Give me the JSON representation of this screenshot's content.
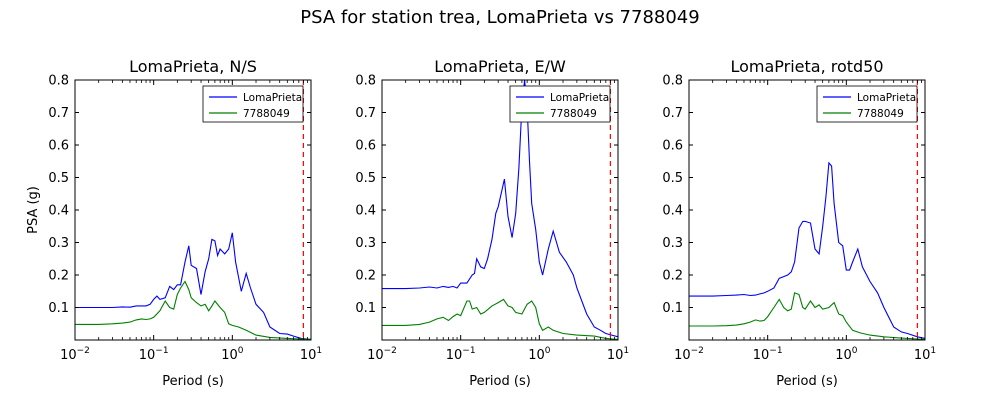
{
  "figure": {
    "suptitle": "PSA for station trea, LomaPrieta vs 7788049",
    "colors": {
      "series1": "#0000ff",
      "series2": "#008000",
      "refline": "#ff0000",
      "axes": "#000000",
      "background": "#ffffff"
    }
  },
  "chart_data": [
    {
      "type": "line",
      "title": "LomaPrieta, N/S",
      "xlabel": "Period (s)",
      "ylabel": "PSA (g)",
      "xscale": "log",
      "xlim": [
        0.01,
        10
      ],
      "ylim": [
        0.0,
        0.8
      ],
      "xticks": [
        "10^-2",
        "10^-1",
        "10^0",
        "10^1"
      ],
      "yticks": [
        "0.1",
        "0.2",
        "0.3",
        "0.4",
        "0.5",
        "0.6",
        "0.7",
        "0.8"
      ],
      "legend": "top-right",
      "grid": false,
      "vline": {
        "x": 8,
        "style": "dashed",
        "color": "#ff0000"
      },
      "series": [
        {
          "name": "LomaPrieta",
          "color": "#0000ff",
          "x": [
            0.01,
            0.02,
            0.03,
            0.04,
            0.05,
            0.06,
            0.07,
            0.08,
            0.09,
            0.1,
            0.11,
            0.12,
            0.14,
            0.16,
            0.18,
            0.2,
            0.22,
            0.25,
            0.28,
            0.3,
            0.35,
            0.4,
            0.45,
            0.5,
            0.55,
            0.6,
            0.65,
            0.7,
            0.8,
            0.9,
            1.0,
            1.1,
            1.3,
            1.5,
            1.7,
            2.0,
            2.5,
            3.0,
            4.0,
            5.0,
            6.0,
            7.5,
            10.0
          ],
          "y": [
            0.1,
            0.1,
            0.1,
            0.102,
            0.101,
            0.105,
            0.105,
            0.105,
            0.11,
            0.125,
            0.135,
            0.125,
            0.13,
            0.165,
            0.155,
            0.17,
            0.17,
            0.24,
            0.29,
            0.23,
            0.22,
            0.14,
            0.21,
            0.25,
            0.31,
            0.305,
            0.26,
            0.28,
            0.265,
            0.28,
            0.33,
            0.24,
            0.15,
            0.205,
            0.16,
            0.11,
            0.085,
            0.04,
            0.02,
            0.018,
            0.012,
            0.005,
            0.002
          ]
        },
        {
          "name": "7788049",
          "color": "#008000",
          "x": [
            0.01,
            0.02,
            0.03,
            0.04,
            0.05,
            0.06,
            0.07,
            0.08,
            0.09,
            0.1,
            0.12,
            0.14,
            0.16,
            0.18,
            0.2,
            0.22,
            0.25,
            0.28,
            0.3,
            0.35,
            0.4,
            0.45,
            0.5,
            0.55,
            0.6,
            0.7,
            0.8,
            0.9,
            1.0,
            1.2,
            1.5,
            2.0,
            3.0,
            5.0,
            7.5,
            10.0
          ],
          "y": [
            0.048,
            0.048,
            0.05,
            0.052,
            0.055,
            0.062,
            0.065,
            0.063,
            0.065,
            0.07,
            0.09,
            0.12,
            0.1,
            0.095,
            0.14,
            0.16,
            0.18,
            0.155,
            0.13,
            0.115,
            0.105,
            0.11,
            0.09,
            0.105,
            0.12,
            0.1,
            0.085,
            0.05,
            0.045,
            0.04,
            0.03,
            0.015,
            0.008,
            0.005,
            0.003,
            0.002
          ]
        }
      ]
    },
    {
      "type": "line",
      "title": "LomaPrieta, E/W",
      "xlabel": "Period (s)",
      "ylabel": "",
      "xscale": "log",
      "xlim": [
        0.01,
        10
      ],
      "ylim": [
        0.0,
        0.8
      ],
      "xticks": [
        "10^-2",
        "10^-1",
        "10^0",
        "10^1"
      ],
      "yticks": [
        "0.1",
        "0.2",
        "0.3",
        "0.4",
        "0.5",
        "0.6",
        "0.7",
        "0.8"
      ],
      "legend": "top-right",
      "grid": false,
      "vline": {
        "x": 8,
        "style": "dashed",
        "color": "#ff0000"
      },
      "series": [
        {
          "name": "LomaPrieta",
          "color": "#0000ff",
          "x": [
            0.01,
            0.02,
            0.03,
            0.04,
            0.05,
            0.06,
            0.07,
            0.08,
            0.09,
            0.1,
            0.12,
            0.14,
            0.15,
            0.16,
            0.18,
            0.2,
            0.22,
            0.25,
            0.28,
            0.3,
            0.33,
            0.36,
            0.4,
            0.45,
            0.5,
            0.55,
            0.6,
            0.65,
            0.7,
            0.75,
            0.8,
            0.9,
            1.0,
            1.1,
            1.3,
            1.5,
            1.8,
            2.2,
            2.7,
            3.0,
            4.0,
            5.0,
            6.0,
            7.0,
            10.0
          ],
          "y": [
            0.158,
            0.158,
            0.16,
            0.163,
            0.16,
            0.165,
            0.162,
            0.165,
            0.16,
            0.175,
            0.175,
            0.2,
            0.205,
            0.25,
            0.225,
            0.22,
            0.25,
            0.31,
            0.39,
            0.41,
            0.455,
            0.495,
            0.38,
            0.315,
            0.39,
            0.53,
            0.72,
            0.8,
            0.72,
            0.55,
            0.42,
            0.34,
            0.24,
            0.2,
            0.28,
            0.335,
            0.27,
            0.24,
            0.2,
            0.16,
            0.08,
            0.04,
            0.03,
            0.02,
            0.01
          ]
        },
        {
          "name": "7788049",
          "color": "#008000",
          "x": [
            0.01,
            0.02,
            0.03,
            0.04,
            0.05,
            0.06,
            0.07,
            0.08,
            0.09,
            0.1,
            0.12,
            0.13,
            0.14,
            0.16,
            0.18,
            0.2,
            0.25,
            0.3,
            0.35,
            0.4,
            0.45,
            0.5,
            0.6,
            0.7,
            0.8,
            0.9,
            1.0,
            1.1,
            1.3,
            1.5,
            2.0,
            3.0,
            5.0,
            7.0,
            10.0
          ],
          "y": [
            0.045,
            0.045,
            0.048,
            0.055,
            0.065,
            0.07,
            0.06,
            0.072,
            0.08,
            0.075,
            0.12,
            0.12,
            0.095,
            0.1,
            0.08,
            0.085,
            0.105,
            0.115,
            0.125,
            0.105,
            0.1,
            0.085,
            0.08,
            0.11,
            0.12,
            0.1,
            0.05,
            0.03,
            0.04,
            0.03,
            0.02,
            0.015,
            0.012,
            0.005,
            0.002
          ]
        }
      ]
    },
    {
      "type": "line",
      "title": "LomaPrieta, rotd50",
      "xlabel": "Period (s)",
      "ylabel": "",
      "xscale": "log",
      "xlim": [
        0.01,
        10
      ],
      "ylim": [
        0.0,
        0.8
      ],
      "xticks": [
        "10^-2",
        "10^-1",
        "10^0",
        "10^1"
      ],
      "yticks": [
        "0.1",
        "0.2",
        "0.3",
        "0.4",
        "0.5",
        "0.6",
        "0.7",
        "0.8"
      ],
      "legend": "top-right",
      "grid": false,
      "vline": {
        "x": 8,
        "style": "dashed",
        "color": "#ff0000"
      },
      "series": [
        {
          "name": "LomaPrieta",
          "color": "#0000ff",
          "x": [
            0.01,
            0.02,
            0.03,
            0.04,
            0.05,
            0.06,
            0.07,
            0.08,
            0.09,
            0.1,
            0.12,
            0.14,
            0.16,
            0.18,
            0.2,
            0.22,
            0.25,
            0.28,
            0.3,
            0.35,
            0.4,
            0.45,
            0.5,
            0.55,
            0.6,
            0.65,
            0.7,
            0.8,
            0.9,
            1.0,
            1.1,
            1.2,
            1.4,
            1.6,
            2.0,
            2.5,
            3.0,
            4.0,
            5.0,
            6.0,
            8.0,
            10.0
          ],
          "y": [
            0.135,
            0.135,
            0.137,
            0.138,
            0.14,
            0.137,
            0.138,
            0.142,
            0.145,
            0.15,
            0.16,
            0.19,
            0.195,
            0.2,
            0.21,
            0.24,
            0.345,
            0.365,
            0.365,
            0.36,
            0.28,
            0.265,
            0.35,
            0.44,
            0.545,
            0.535,
            0.42,
            0.3,
            0.29,
            0.215,
            0.215,
            0.24,
            0.28,
            0.225,
            0.18,
            0.145,
            0.1,
            0.04,
            0.025,
            0.02,
            0.01,
            0.005
          ]
        },
        {
          "name": "7788049",
          "color": "#008000",
          "x": [
            0.01,
            0.02,
            0.03,
            0.04,
            0.05,
            0.06,
            0.07,
            0.08,
            0.09,
            0.1,
            0.12,
            0.14,
            0.16,
            0.18,
            0.2,
            0.22,
            0.25,
            0.28,
            0.3,
            0.35,
            0.4,
            0.45,
            0.5,
            0.6,
            0.7,
            0.8,
            0.9,
            1.0,
            1.2,
            1.5,
            2.0,
            3.0,
            5.0,
            8.0,
            10.0
          ],
          "y": [
            0.043,
            0.043,
            0.044,
            0.046,
            0.05,
            0.055,
            0.062,
            0.058,
            0.06,
            0.072,
            0.1,
            0.125,
            0.1,
            0.09,
            0.095,
            0.145,
            0.14,
            0.1,
            0.095,
            0.12,
            0.1,
            0.108,
            0.095,
            0.1,
            0.115,
            0.08,
            0.075,
            0.055,
            0.03,
            0.022,
            0.015,
            0.01,
            0.006,
            0.003,
            0.002
          ]
        }
      ]
    }
  ]
}
